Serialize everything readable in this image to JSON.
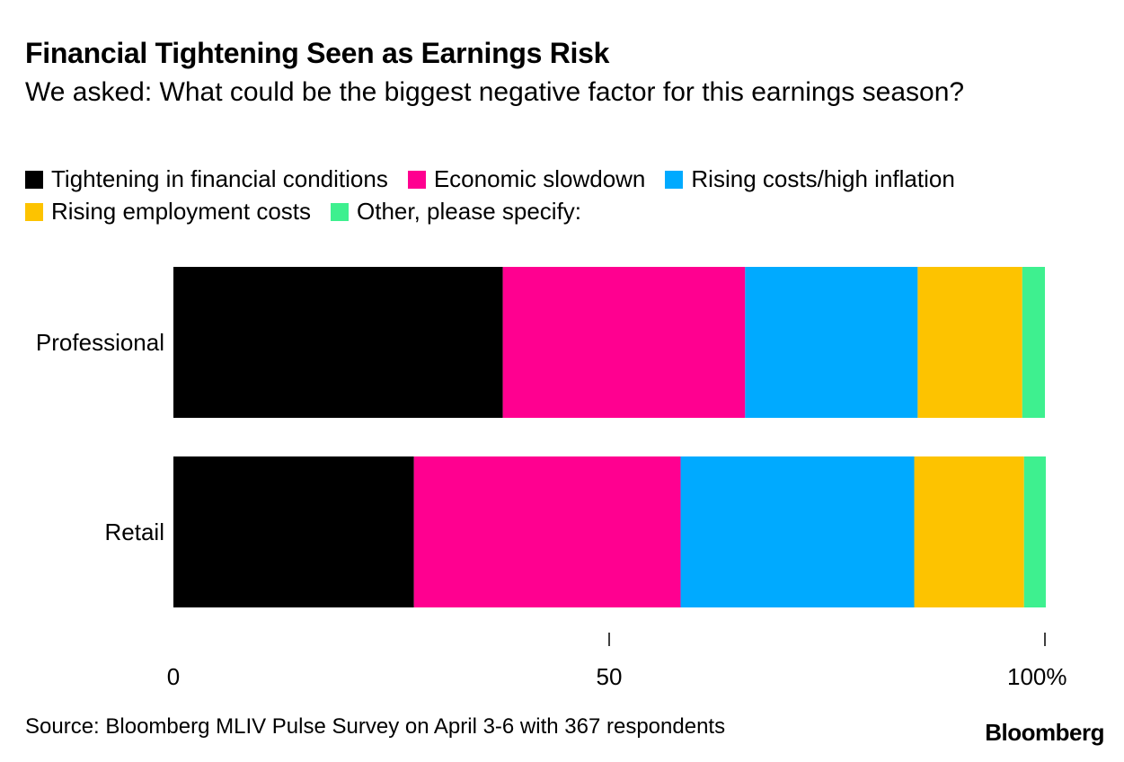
{
  "chart_data": {
    "type": "bar",
    "orientation": "horizontal",
    "stacked": true,
    "title": "Financial Tightening Seen as Earnings Risk",
    "subtitle": "We asked: What could be the biggest negative factor for this earnings season?",
    "categories": [
      "Professional",
      "Retail"
    ],
    "series": [
      {
        "name": "Tightening in financial conditions",
        "color": "#000000",
        "values": [
          37.8,
          27.6
        ]
      },
      {
        "name": "Economic slowdown",
        "color": "#ff0090",
        "values": [
          27.8,
          30.6
        ]
      },
      {
        "name": "Rising costs/high inflation",
        "color": "#00aaff",
        "values": [
          19.8,
          26.8
        ]
      },
      {
        "name": "Rising employment costs",
        "color": "#fdc300",
        "values": [
          12.0,
          12.6
        ]
      },
      {
        "name": "Other, please specify:",
        "color": "#3ef08f",
        "values": [
          2.6,
          2.5
        ]
      }
    ],
    "xlim": [
      0,
      100
    ],
    "x_ticks": [
      {
        "value": 0,
        "label": "0"
      },
      {
        "value": 50,
        "label": "50"
      },
      {
        "value": 100,
        "label": "100%"
      }
    ],
    "legend_position": "top",
    "grid": false,
    "source": "Source: Bloomberg MLIV Pulse Survey on April 3-6 with 367 respondents",
    "brand": "Bloomberg"
  }
}
